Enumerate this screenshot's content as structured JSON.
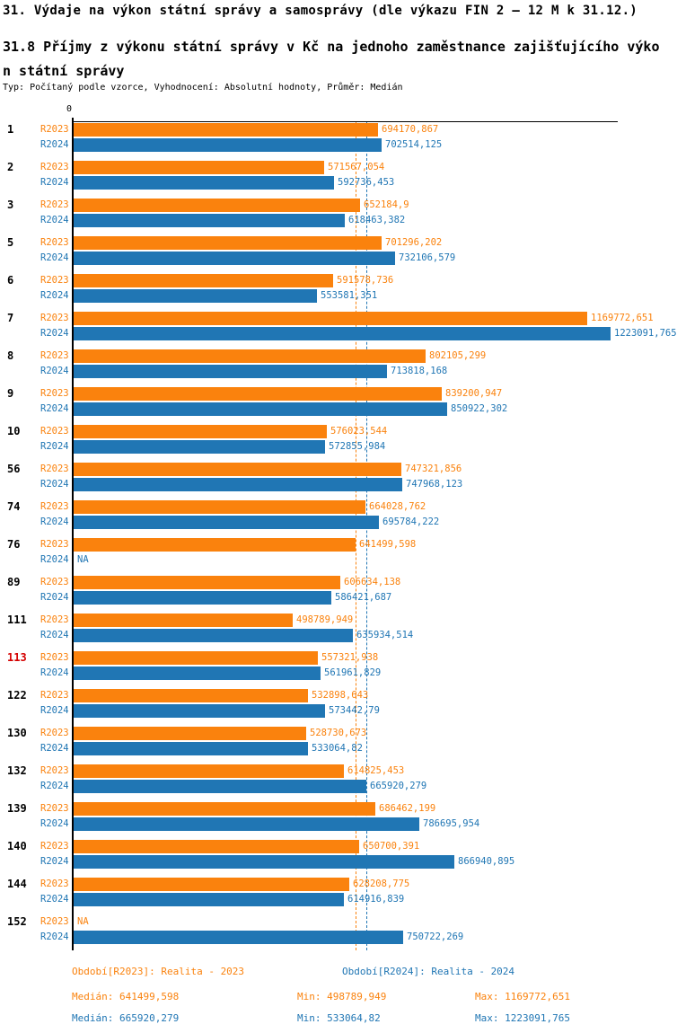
{
  "page": {
    "title": "31. Výdaje na výkon státní správy a samosprávy (dle výkazu FIN 2 – 12 M k 31.12.)",
    "subtitle_line1": "31.8 Příjmy z výkonu státní správy v Kč na jednoho zaměstnance zajišťujícího výko",
    "subtitle_line2": "n státní správy",
    "meta": "Typ: Počítaný podle vzorce, Vyhodnocení: Absolutní hodnoty, Průměr: Medián"
  },
  "colors": {
    "r2023": "#fa820d",
    "r2024": "#2076b4",
    "highlight": "#d40000",
    "axis": "#000000"
  },
  "chart_data": {
    "type": "bar",
    "orientation": "horizontal",
    "title": "31.8 Příjmy z výkonu státní správy v Kč na jednoho zaměstnance zajišťujícího výkon státní správy",
    "axis_zero_label": "0",
    "xlim": [
      0,
      1223091.765
    ],
    "grid": false,
    "na_label": "NA",
    "series_labels": {
      "r2023": "R2023",
      "r2024": "R2024"
    },
    "groups": [
      {
        "id": "1",
        "highlighted": false,
        "r2023": 694170.867,
        "r2023_label": "694170,867",
        "r2024": 702514.125,
        "r2024_label": "702514,125"
      },
      {
        "id": "2",
        "highlighted": false,
        "r2023": 571567.054,
        "r2023_label": "571567,054",
        "r2024": 592736.453,
        "r2024_label": "592736,453"
      },
      {
        "id": "3",
        "highlighted": false,
        "r2023": 652184.9,
        "r2023_label": "652184,9",
        "r2024": 618463.382,
        "r2024_label": "618463,382"
      },
      {
        "id": "5",
        "highlighted": false,
        "r2023": 701296.202,
        "r2023_label": "701296,202",
        "r2024": 732106.579,
        "r2024_label": "732106,579"
      },
      {
        "id": "6",
        "highlighted": false,
        "r2023": 591578.736,
        "r2023_label": "591578,736",
        "r2024": 553581.351,
        "r2024_label": "553581,351"
      },
      {
        "id": "7",
        "highlighted": false,
        "r2023": 1169772.651,
        "r2023_label": "1169772,651",
        "r2024": 1223091.765,
        "r2024_label": "1223091,765"
      },
      {
        "id": "8",
        "highlighted": false,
        "r2023": 802105.299,
        "r2023_label": "802105,299",
        "r2024": 713818.168,
        "r2024_label": "713818,168"
      },
      {
        "id": "9",
        "highlighted": false,
        "r2023": 839200.947,
        "r2023_label": "839200,947",
        "r2024": 850922.302,
        "r2024_label": "850922,302"
      },
      {
        "id": "10",
        "highlighted": false,
        "r2023": 576023.544,
        "r2023_label": "576023,544",
        "r2024": 572855.984,
        "r2024_label": "572855,984"
      },
      {
        "id": "56",
        "highlighted": false,
        "r2023": 747321.856,
        "r2023_label": "747321,856",
        "r2024": 747968.123,
        "r2024_label": "747968,123"
      },
      {
        "id": "74",
        "highlighted": false,
        "r2023": 664028.762,
        "r2023_label": "664028,762",
        "r2024": 695784.222,
        "r2024_label": "695784,222"
      },
      {
        "id": "76",
        "highlighted": false,
        "r2023": 641499.598,
        "r2023_label": "641499,598",
        "r2024": null,
        "r2024_label": "NA"
      },
      {
        "id": "89",
        "highlighted": false,
        "r2023": 606634.138,
        "r2023_label": "606634,138",
        "r2024": 586421.687,
        "r2024_label": "586421,687"
      },
      {
        "id": "111",
        "highlighted": false,
        "r2023": 498789.949,
        "r2023_label": "498789,949",
        "r2024": 635934.514,
        "r2024_label": "635934,514"
      },
      {
        "id": "113",
        "highlighted": true,
        "r2023": 557321.938,
        "r2023_label": "557321,938",
        "r2024": 561961.829,
        "r2024_label": "561961,829"
      },
      {
        "id": "122",
        "highlighted": false,
        "r2023": 532898.643,
        "r2023_label": "532898,643",
        "r2024": 573442.79,
        "r2024_label": "573442,79"
      },
      {
        "id": "130",
        "highlighted": false,
        "r2023": 528730.673,
        "r2023_label": "528730,673",
        "r2024": 533064.82,
        "r2024_label": "533064,82"
      },
      {
        "id": "132",
        "highlighted": false,
        "r2023": 614825.453,
        "r2023_label": "614825,453",
        "r2024": 665920.279,
        "r2024_label": "665920,279"
      },
      {
        "id": "139",
        "highlighted": false,
        "r2023": 686462.199,
        "r2023_label": "686462,199",
        "r2024": 786695.954,
        "r2024_label": "786695,954"
      },
      {
        "id": "140",
        "highlighted": false,
        "r2023": 650700.391,
        "r2023_label": "650700,391",
        "r2024": 866940.895,
        "r2024_label": "866940,895"
      },
      {
        "id": "144",
        "highlighted": false,
        "r2023": 628208.775,
        "r2023_label": "628208,775",
        "r2024": 614916.839,
        "r2024_label": "614916,839"
      },
      {
        "id": "152",
        "highlighted": false,
        "r2023": null,
        "r2023_label": "NA",
        "r2024": 750722.269,
        "r2024_label": "750722,269"
      }
    ],
    "medians": {
      "r2023": 641499.598,
      "r2024": 665920.279
    },
    "legend": [
      {
        "series": "r2023",
        "label": "Období[R2023]: Realita - 2023"
      },
      {
        "series": "r2024",
        "label": "Období[R2024]: Realita - 2024"
      }
    ],
    "stats": [
      {
        "series": "r2023",
        "median": 641499.598,
        "min": 498789.949,
        "max": 1169772.651,
        "median_text": "Medián: 641499,598",
        "min_text": "Min: 498789,949",
        "max_text": "Max: 1169772,651"
      },
      {
        "series": "r2024",
        "median": 665920.279,
        "min": 533064.82,
        "max": 1223091.765,
        "median_text": "Medián: 665920,279",
        "min_text": "Min: 533064,82",
        "max_text": "Max: 1223091,765"
      }
    ]
  }
}
